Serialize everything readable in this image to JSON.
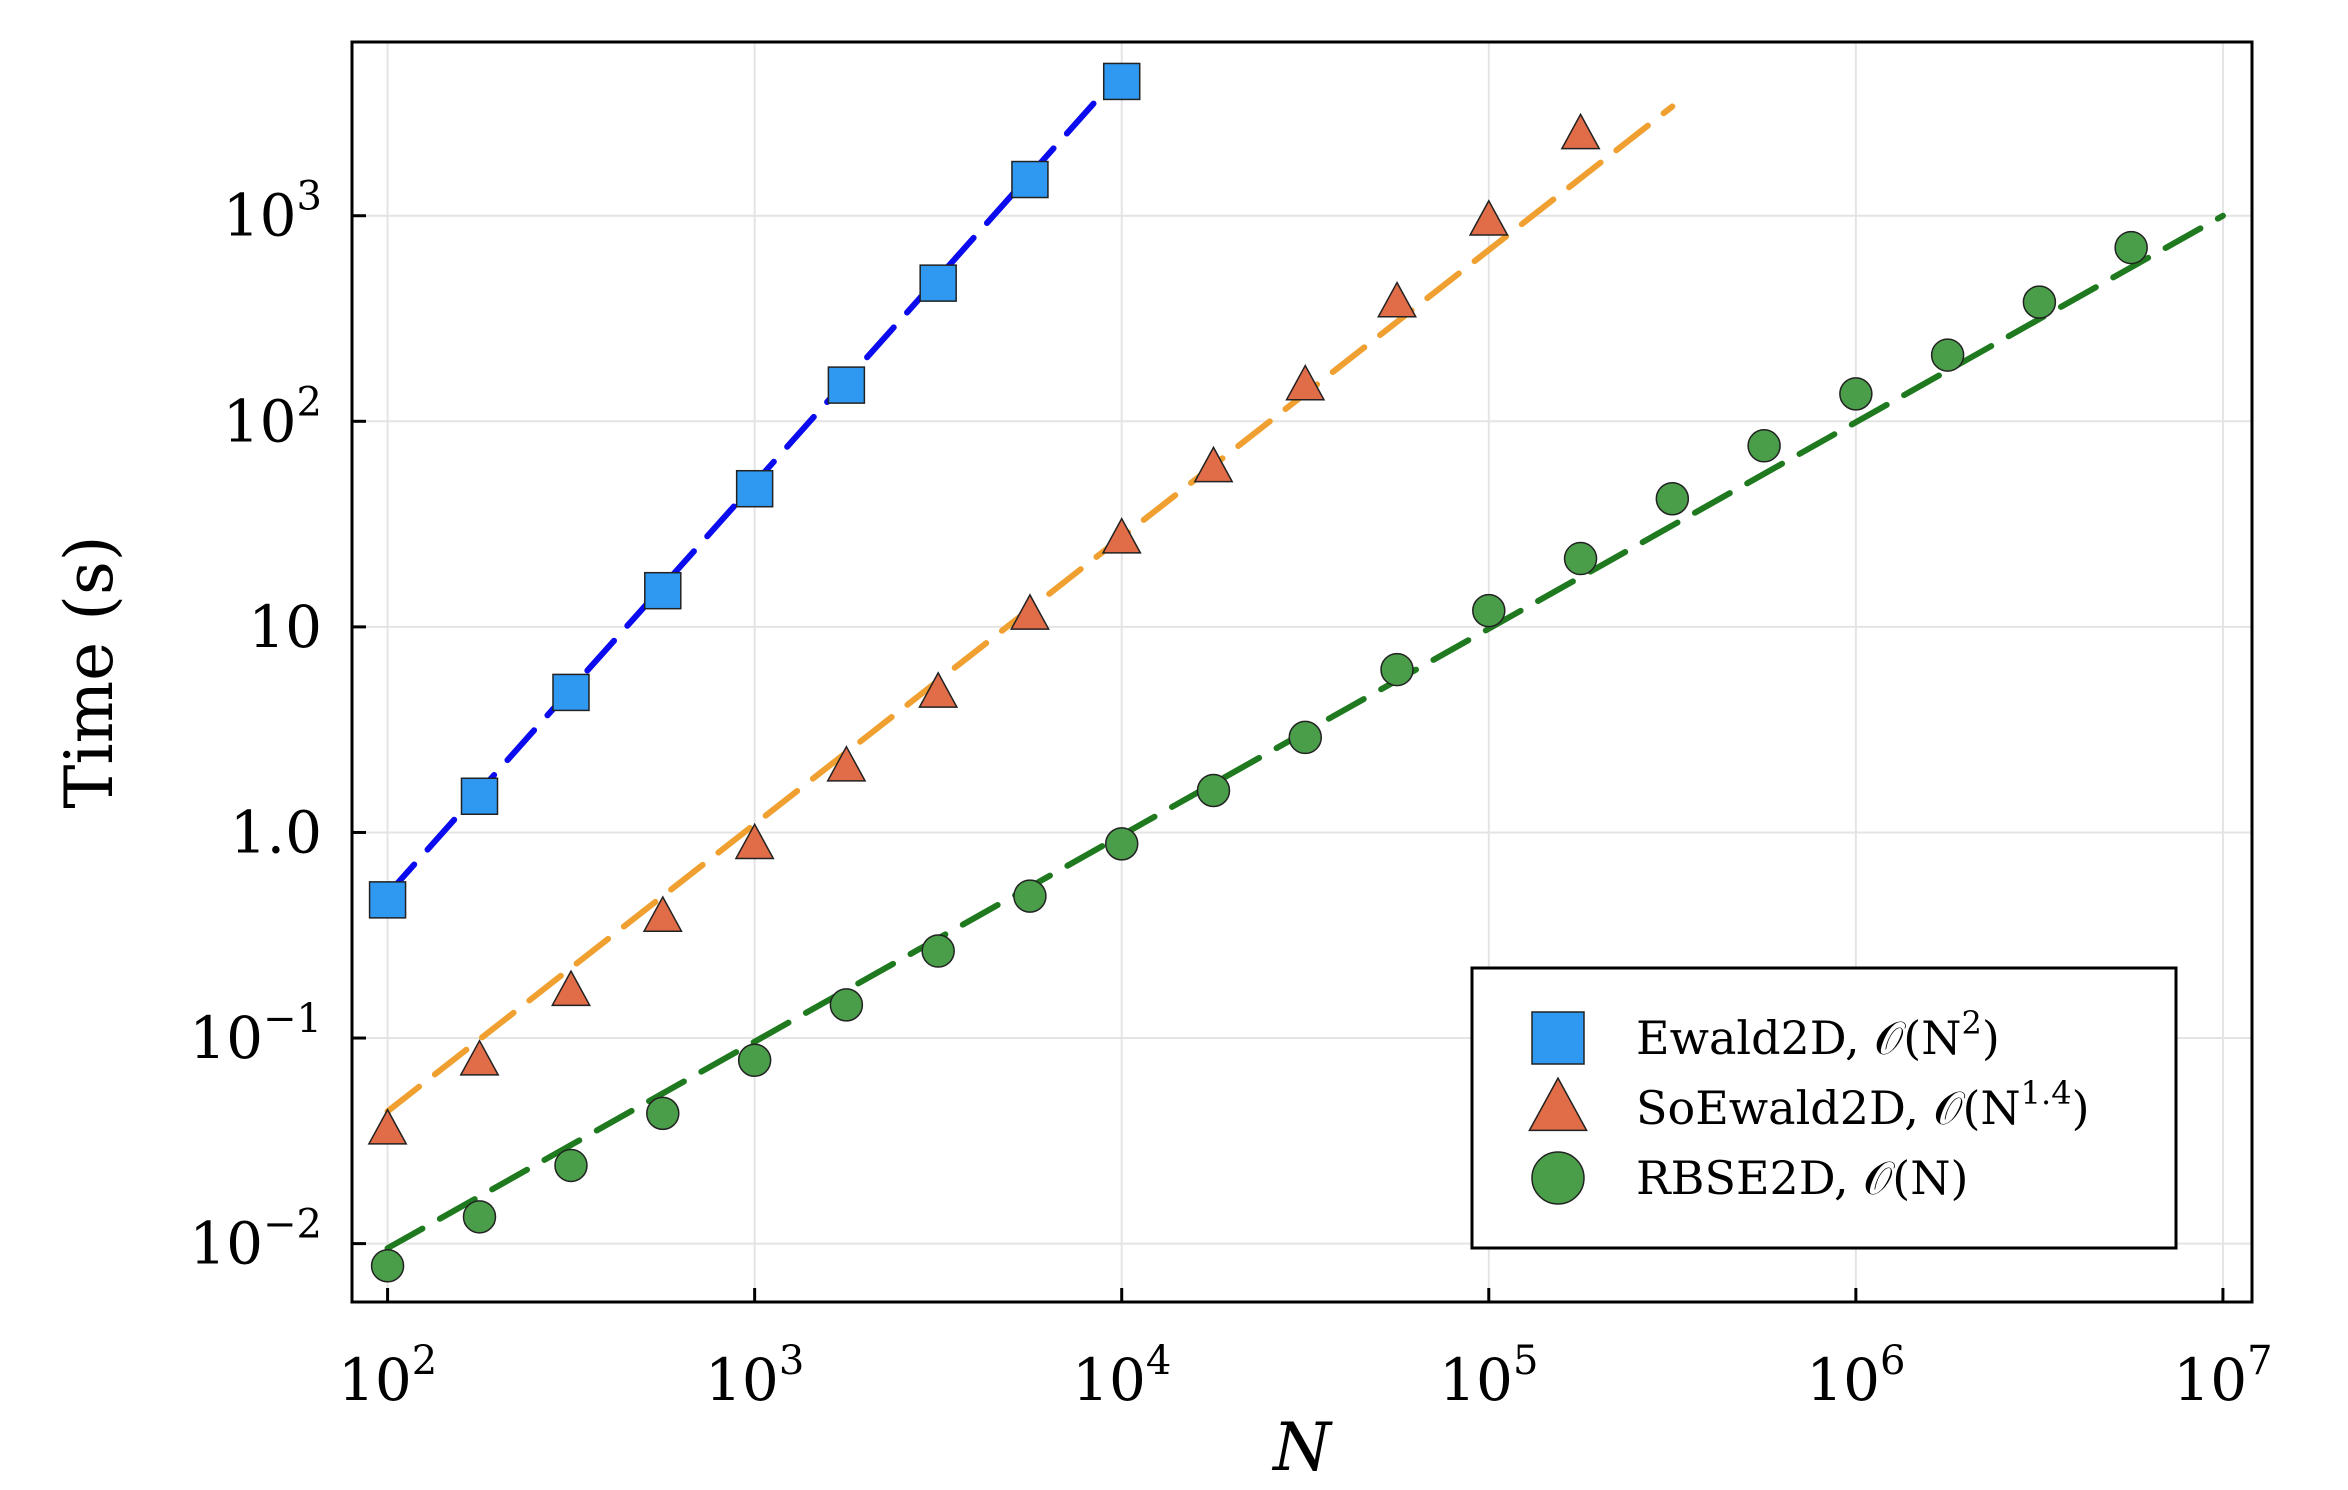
{
  "chart_data": {
    "type": "scatter",
    "xscale": "log",
    "yscale": "log",
    "xlim": [
      80,
      12000000
    ],
    "ylim": [
      0.0052,
      7000
    ],
    "grid": true,
    "legend_position": "bottom-right",
    "xlabel": "N",
    "ylabel": "Time (s)",
    "xticks": [
      {
        "value": 100,
        "base": "10",
        "exp": "2"
      },
      {
        "value": 1000,
        "base": "10",
        "exp": "3"
      },
      {
        "value": 10000,
        "base": "10",
        "exp": "4"
      },
      {
        "value": 100000,
        "base": "10",
        "exp": "5"
      },
      {
        "value": 1000000,
        "base": "10",
        "exp": "6"
      },
      {
        "value": 10000000,
        "base": "10",
        "exp": "7"
      }
    ],
    "yticks": [
      {
        "value": 0.01,
        "base": "10",
        "exp": "−2"
      },
      {
        "value": 0.1,
        "base": "10",
        "exp": "−1"
      },
      {
        "value": 1,
        "base": "1.0",
        "exp": ""
      },
      {
        "value": 10,
        "base": "10",
        "exp": ""
      },
      {
        "value": 100,
        "base": "10",
        "exp": "2"
      },
      {
        "value": 1000,
        "base": "10",
        "exp": "3"
      }
    ],
    "series": [
      {
        "name": "Ewald2D, 𝒪(N²)",
        "legend_base": "Ewald2D, 𝒪(N",
        "legend_sup": "2",
        "legend_tail": ")",
        "marker": "square",
        "color": "#2f98f0",
        "x": [
          100,
          178,
          316,
          562,
          1000,
          1778,
          3162,
          5623,
          10000
        ],
        "y": [
          0.47,
          1.5,
          4.8,
          15,
          47,
          150,
          470,
          1500,
          4500
        ],
        "fit": {
          "x": [
            100,
            10000
          ],
          "y": [
            0.5,
            5000
          ],
          "color": "#0b0bf0"
        }
      },
      {
        "name": "SoEwald2D, 𝒪(N¹·⁴)",
        "legend_base": "SoEwald2D, 𝒪(N",
        "legend_sup": "1.4",
        "legend_tail": ")",
        "marker": "triangle",
        "color": "#e06c48",
        "x": [
          100,
          178,
          316,
          562,
          1000,
          1778,
          3162,
          5623,
          10000,
          17783,
          31623,
          56234,
          100000,
          177828
        ],
        "y": [
          0.036,
          0.078,
          0.17,
          0.39,
          0.88,
          2.1,
          4.8,
          11.5,
          27,
          60,
          150,
          380,
          950,
          2500
        ],
        "fit": {
          "x": [
            100,
            316228
          ],
          "y": [
            0.044,
            3400
          ],
          "color": "#f0a030"
        }
      },
      {
        "name": "RBSE2D, 𝒪(N)",
        "legend_base": "RBSE2D, 𝒪(N",
        "legend_sup": "",
        "legend_tail": ")",
        "marker": "circle",
        "color": "#4a9e4a",
        "x": [
          100,
          178,
          316,
          562,
          1000,
          1778,
          3162,
          5623,
          10000,
          17783,
          31623,
          56234,
          100000,
          177828,
          316228,
          562341,
          1000000,
          1778279,
          3162278,
          5623413
        ],
        "y": [
          0.0078,
          0.0135,
          0.024,
          0.043,
          0.078,
          0.145,
          0.265,
          0.49,
          0.88,
          1.6,
          2.9,
          6.2,
          12,
          21.5,
          42,
          76,
          136,
          210,
          380,
          700
        ],
        "fit": {
          "x": [
            100,
            10000000
          ],
          "y": [
            0.0095,
            1000
          ],
          "color": "#1f7a1f"
        }
      }
    ]
  }
}
